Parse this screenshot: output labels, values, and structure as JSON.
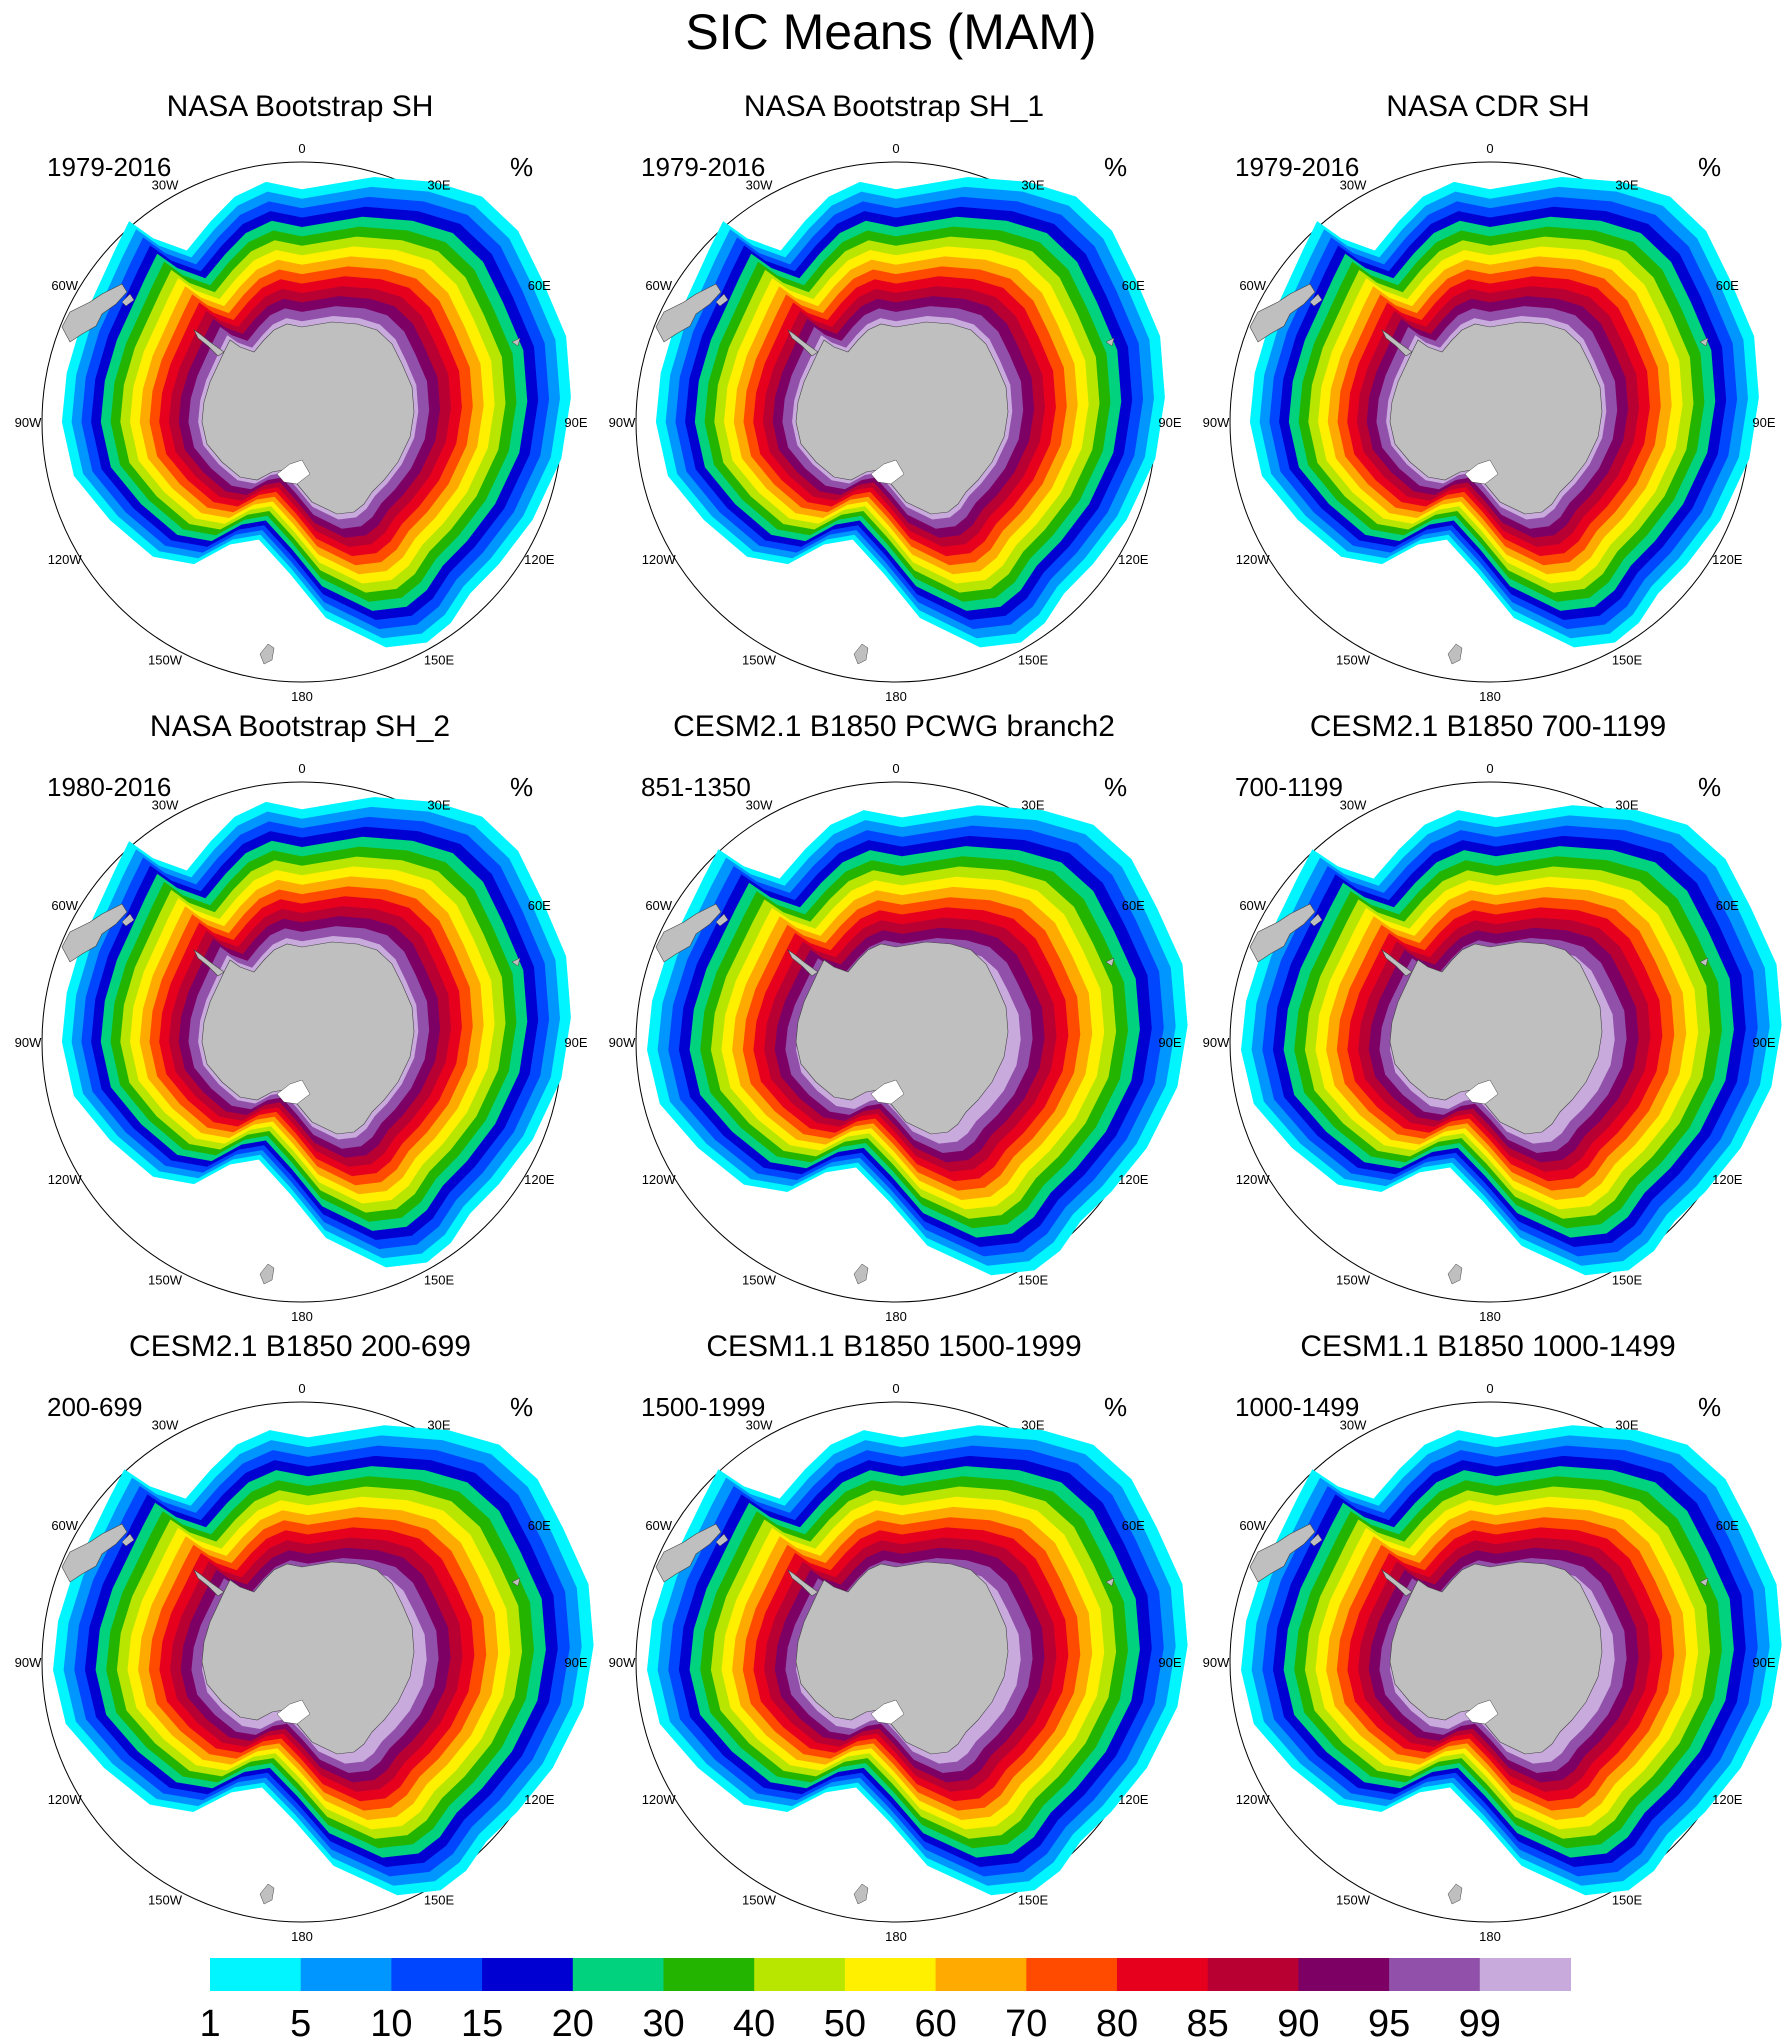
{
  "title": "SIC Means (MAM)",
  "unit": "%",
  "longitude_labels": [
    "0",
    "30E",
    "60E",
    "90E",
    "120E",
    "150E",
    "180",
    "150W",
    "120W",
    "90W",
    "60W",
    "30W"
  ],
  "panels": [
    {
      "title": "NASA Bootstrap SH",
      "period": "1979-2016",
      "style": "obs"
    },
    {
      "title": "NASA Bootstrap SH_1",
      "period": "1979-2016",
      "style": "obs"
    },
    {
      "title": "NASA CDR SH",
      "period": "1979-2016",
      "style": "obs"
    },
    {
      "title": "NASA Bootstrap SH_2",
      "period": "1980-2016",
      "style": "obs"
    },
    {
      "title": "CESM2.1 B1850 PCWG branch2",
      "period": "851-1350",
      "style": "model"
    },
    {
      "title": "CESM2.1 B1850 700-1199",
      "period": "700-1199",
      "style": "model"
    },
    {
      "title": "CESM2.1 B1850 200-699",
      "period": "200-699",
      "style": "model"
    },
    {
      "title": "CESM1.1 B1850 1500-1999",
      "period": "1500-1999",
      "style": "model"
    },
    {
      "title": "CESM1.1 B1850 1000-1499",
      "period": "1000-1499",
      "style": "model"
    }
  ],
  "colorbar": {
    "labels": [
      "1",
      "5",
      "10",
      "15",
      "20",
      "30",
      "40",
      "50",
      "60",
      "70",
      "80",
      "85",
      "90",
      "95",
      "99"
    ],
    "colors": [
      "#00f5ff",
      "#0096ff",
      "#0046ff",
      "#0000d2",
      "#00d27d",
      "#23b400",
      "#b9e600",
      "#fff000",
      "#ffaa00",
      "#ff4b00",
      "#e6001e",
      "#b90032",
      "#7d0064",
      "#9150aa",
      "#c8aadc"
    ]
  },
  "land_color": "#bfbfbf"
}
